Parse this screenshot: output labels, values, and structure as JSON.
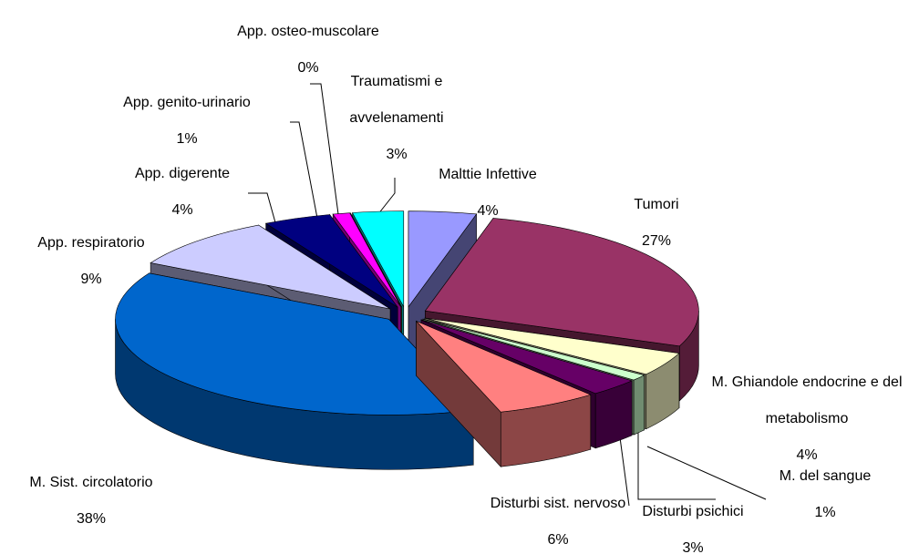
{
  "chart_data": {
    "type": "pie",
    "categories": [
      "Malttie Infettive",
      "Tumori",
      "M. Ghiandole endocrine e del metabolismo",
      "M. del sangue",
      "Disturbi psichici",
      "Disturbi sist. nervoso",
      "M. Sist. circolatorio",
      "App. respiratorio",
      "App. digerente",
      "App. genito-urinario",
      "App. osteo-muscolare",
      "Traumatismi e avvelenamenti"
    ],
    "values": [
      4,
      27,
      4,
      1,
      3,
      6,
      38,
      9,
      4,
      1,
      0,
      3
    ],
    "value_labels": [
      "4%",
      "27%",
      "4%",
      "1%",
      "3%",
      "6%",
      "38%",
      "9%",
      "4%",
      "1%",
      "0%",
      "3%"
    ],
    "colors": [
      "#9999ff",
      "#993366",
      "#ffffcc",
      "#ccffcc",
      "#660066",
      "#ff8080",
      "#0066cc",
      "#ccccff",
      "#000080",
      "#ff00ff",
      "#ffff00",
      "#00ffff"
    ]
  }
}
